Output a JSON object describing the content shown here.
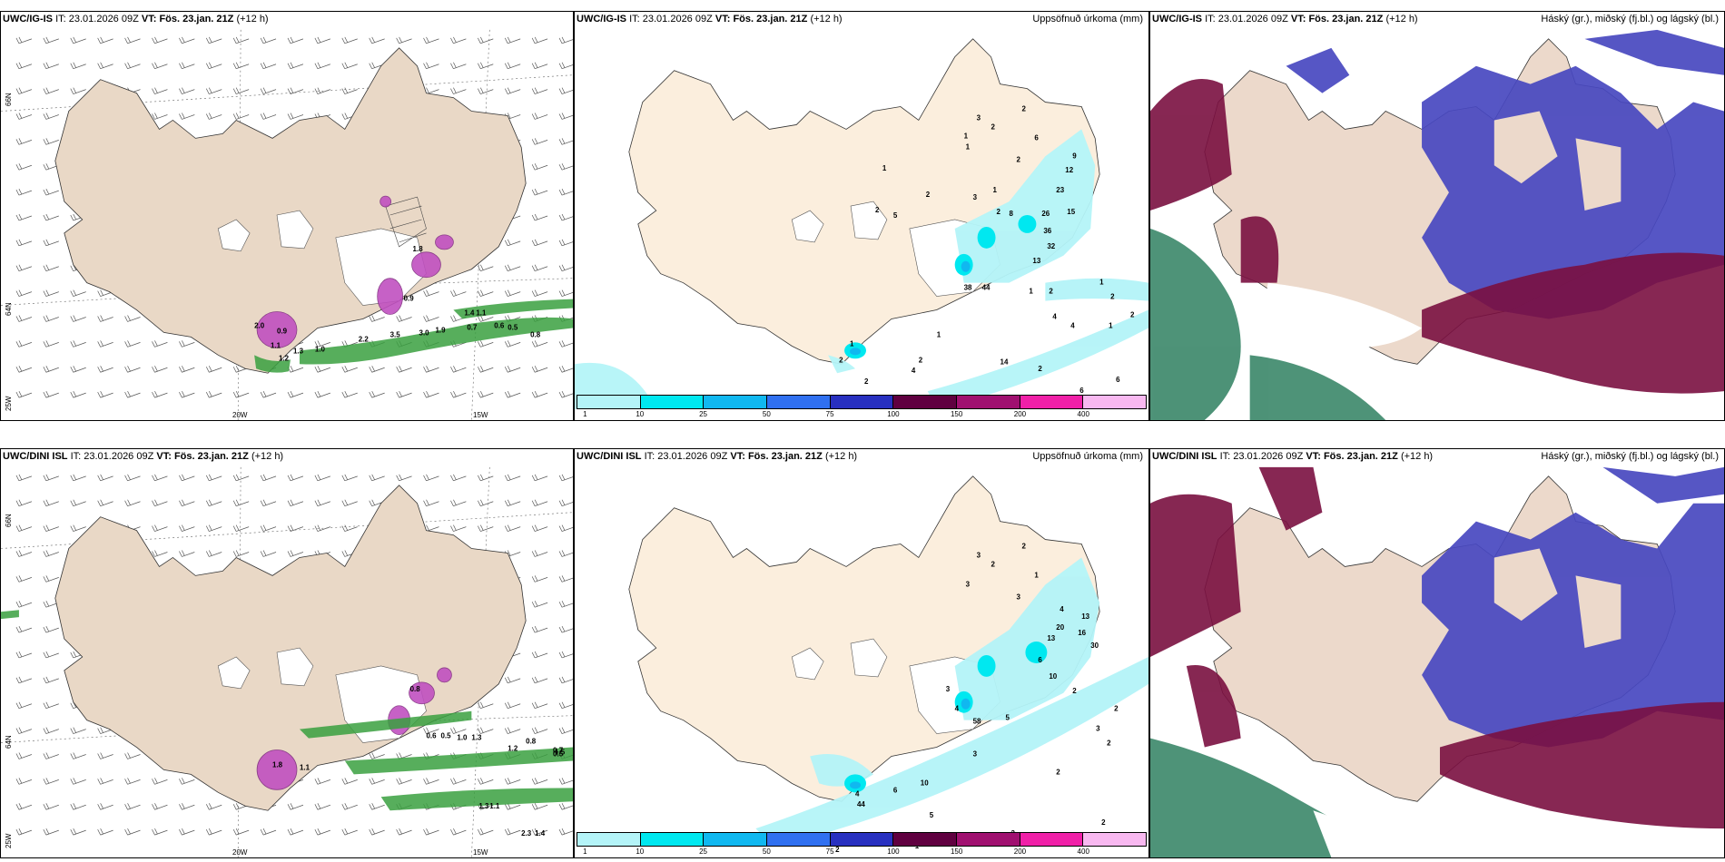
{
  "rows": [
    {
      "model": "UWC/IG-IS",
      "it_label": "IT:",
      "it_value": "23.01.2026 09Z",
      "vt_label": "VT:",
      "vt_value": "Fös. 23.jan. 21Z",
      "lead": "(+12 h)"
    },
    {
      "model": "UWC/DINI ISL",
      "it_label": "IT:",
      "it_value": "23.01.2026 09Z",
      "vt_label": "VT:",
      "vt_value": "Fös. 23.jan. 21Z",
      "lead": "(+12 h)"
    }
  ],
  "panels": {
    "precip_title": "Uppsöfnuð úrkoma (mm)",
    "cloud_title": "Háský (gr.), miðský (fj.bl.) og lágský (bl.)"
  },
  "grid_labels": {
    "lat_66": "66N",
    "lat_64": "64N",
    "lon_20": "20W",
    "lon_15": "15W",
    "lon_25": "25W"
  },
  "colorbar": {
    "labels": [
      "1",
      "10",
      "25",
      "50",
      "75",
      "100",
      "150",
      "200",
      "400"
    ],
    "colors": [
      "#b4f4f8",
      "#00e8f0",
      "#10b8f0",
      "#3070f0",
      "#2830c0",
      "#600040",
      "#a01070",
      "#f020a8",
      "#f8b8f0"
    ]
  },
  "precip_numbers_top": [
    "3",
    "2",
    "2",
    "6",
    "1",
    "1",
    "2",
    "9",
    "12",
    "23",
    "15",
    "26",
    "36",
    "32",
    "13",
    "38",
    "44",
    "1",
    "2",
    "4",
    "4",
    "1",
    "2",
    "1",
    "2",
    "2",
    "4",
    "14",
    "2",
    "6",
    "6",
    "1",
    "2",
    "2",
    "1",
    "3",
    "1",
    "2",
    "2",
    "2",
    "5",
    "1",
    "8"
  ],
  "precip_numbers_bottom": [
    "3",
    "2",
    "2",
    "1",
    "3",
    "3",
    "4",
    "13",
    "20",
    "16",
    "30",
    "13",
    "6",
    "10",
    "58",
    "3",
    "4",
    "2",
    "2",
    "3",
    "2",
    "3",
    "10",
    "5",
    "6",
    "44",
    "4",
    "2",
    "2",
    "1",
    "3",
    "2",
    "2",
    "2",
    "2",
    "5"
  ],
  "wind_numbers_top": [
    "2.0",
    "1.8",
    "0.9",
    "1.3",
    "1.0",
    "2.2",
    "3.5",
    "3.0",
    "1.9",
    "0.7",
    "0.6",
    "0.5",
    "0.8",
    "1.4",
    "1.1",
    "0.9",
    "1.1",
    "1.2"
  ],
  "wind_numbers_bottom": [
    "1.8",
    "0.8",
    "0.6",
    "0.5",
    "1.0",
    "1.3",
    "1.2",
    "0.8",
    "0.7",
    "0.5",
    "1.5",
    "1.4",
    "1.1",
    "1.3",
    "2.3",
    "1.1"
  ]
}
